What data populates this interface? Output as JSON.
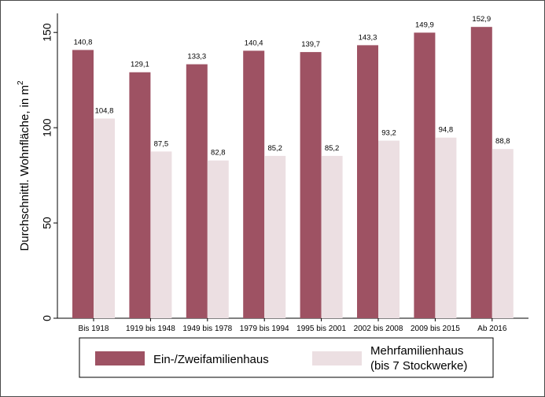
{
  "chart_data": {
    "type": "bar",
    "categories": [
      "Bis 1918",
      "1919 bis 1948",
      "1949 bis 1978",
      "1979 bis 1994",
      "1995 bis 2001",
      "2002 bis 2008",
      "2009 bis 2015",
      "Ab 2016"
    ],
    "series": [
      {
        "name": "Ein-/Zweifamilienhaus",
        "values": [
          140.8,
          129.1,
          133.3,
          140.4,
          139.7,
          143.3,
          149.9,
          152.9
        ],
        "labels": [
          "140,8",
          "129,1",
          "133,3",
          "140,4",
          "139,7",
          "143,3",
          "149,9",
          "152,9"
        ],
        "color": "#9e5263"
      },
      {
        "name": "Mehrfamilienhaus (bis 7 Stockwerke)",
        "name_lines": [
          "Mehrfamilienhaus",
          "(bis 7 Stockwerke)"
        ],
        "values": [
          104.8,
          87.5,
          82.8,
          85.2,
          85.2,
          93.2,
          94.8,
          88.8
        ],
        "labels": [
          "104,8",
          "87,5",
          "82,8",
          "85,2",
          "85,2",
          "93,2",
          "94,8",
          "88,8"
        ],
        "color": "#ecdfe2"
      }
    ],
    "ylabel": "Durchschnittl. Wohnfläche, in m²",
    "ylabel_main": "Durchschnittl. Wohnfläche, in m",
    "ylabel_sup": "2",
    "yticks": [
      "0",
      "50",
      "100",
      "150"
    ],
    "ylim": [
      0,
      160
    ],
    "grid": false,
    "legend_position": "bottom"
  }
}
